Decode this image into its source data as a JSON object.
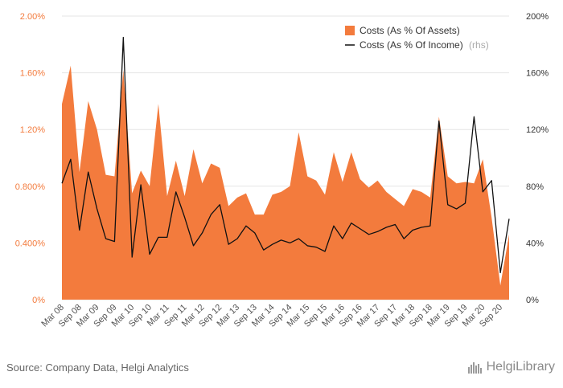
{
  "chart_data": {
    "type": "area",
    "x": [
      "Mar 08",
      "Jun 08",
      "Sep 08",
      "Dec 08",
      "Mar 09",
      "Jun 09",
      "Sep 09",
      "Dec 09",
      "Mar 10",
      "Jun 10",
      "Sep 10",
      "Dec 10",
      "Mar 11",
      "Jun 11",
      "Sep 11",
      "Dec 11",
      "Mar 12",
      "Jun 12",
      "Sep 12",
      "Dec 12",
      "Mar 13",
      "Jun 13",
      "Sep 13",
      "Dec 13",
      "Mar 14",
      "Jun 14",
      "Sep 14",
      "Dec 14",
      "Mar 15",
      "Jun 15",
      "Sep 15",
      "Dec 15",
      "Mar 16",
      "Jun 16",
      "Sep 16",
      "Dec 16",
      "Mar 17",
      "Jun 17",
      "Sep 17",
      "Dec 17",
      "Mar 18",
      "Jun 18",
      "Sep 18",
      "Dec 18",
      "Mar 19",
      "Jun 19",
      "Sep 19",
      "Dec 19",
      "Mar 20",
      "Jun 20",
      "Sep 20",
      "Dec 20"
    ],
    "x_tick_labels": [
      "Mar 08",
      "Sep 08",
      "Mar 09",
      "Sep 09",
      "Mar 10",
      "Sep 10",
      "Mar 11",
      "Sep 11",
      "Mar 12",
      "Sep 12",
      "Mar 13",
      "Sep 13",
      "Mar 14",
      "Sep 14",
      "Mar 15",
      "Sep 15",
      "Mar 16",
      "Sep 16",
      "Mar 17",
      "Sep 17",
      "Mar 18",
      "Sep 18",
      "Mar 19",
      "Sep 19",
      "Mar 20",
      "Sep 20"
    ],
    "series": [
      {
        "name": "Costs (As % Of Assets)",
        "axis": "left",
        "style": "area",
        "color": "#f37b3d",
        "values": [
          1.38,
          1.65,
          0.9,
          1.4,
          1.2,
          0.88,
          0.87,
          1.62,
          0.75,
          0.91,
          0.8,
          1.38,
          0.73,
          0.98,
          0.73,
          1.06,
          0.82,
          0.96,
          0.93,
          0.66,
          0.72,
          0.75,
          0.6,
          0.6,
          0.74,
          0.76,
          0.8,
          1.18,
          0.87,
          0.84,
          0.74,
          1.04,
          0.83,
          1.04,
          0.85,
          0.79,
          0.84,
          0.76,
          0.71,
          0.66,
          0.78,
          0.76,
          0.72,
          1.29,
          0.87,
          0.82,
          0.83,
          0.82,
          0.99,
          0.58,
          0.1,
          0.46
        ]
      },
      {
        "name": "Costs (As % Of Income)",
        "suffix": "(rhs)",
        "axis": "right",
        "style": "line",
        "color": "#111111",
        "values": [
          82,
          99,
          49,
          90,
          64,
          43,
          41,
          185,
          30,
          81,
          32,
          44,
          44,
          76,
          58,
          38,
          47,
          60,
          67,
          39,
          43,
          52,
          47,
          35,
          39,
          42,
          40,
          43,
          38,
          37,
          34,
          52,
          43,
          54,
          50,
          46,
          48,
          51,
          53,
          43,
          49,
          51,
          52,
          126,
          67,
          64,
          68,
          129,
          76,
          84,
          19,
          57
        ]
      }
    ],
    "y_left": {
      "min": 0,
      "max": 2.0,
      "ticks": [
        "0%",
        "0.400%",
        "0.800%",
        "1.20%",
        "1.60%",
        "2.00%"
      ]
    },
    "y_right": {
      "min": 0,
      "max": 200,
      "ticks": [
        "0%",
        "40%",
        "80%",
        "120%",
        "160%",
        "200%"
      ]
    },
    "grid": true,
    "legend_position": "top-right"
  },
  "footer": {
    "source": "Source: Company Data, Helgi Analytics",
    "logo_text": "HelgiLibrary"
  }
}
